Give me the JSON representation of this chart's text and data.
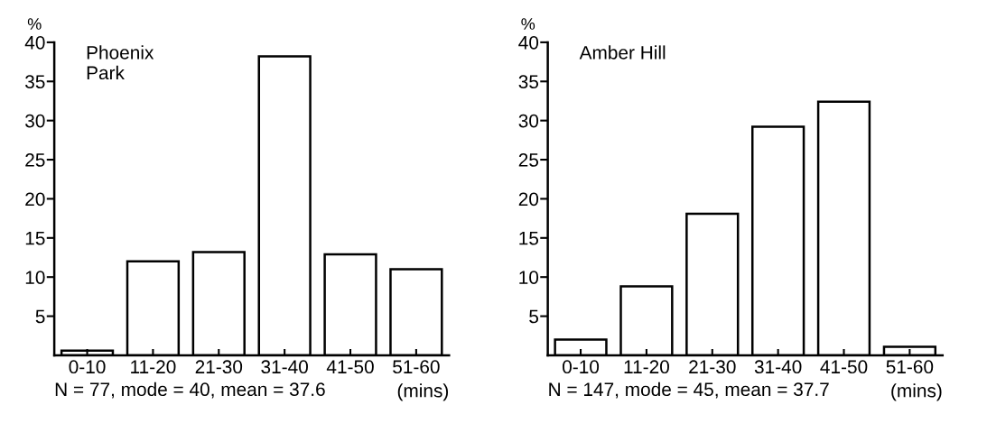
{
  "chart_data": [
    {
      "type": "bar",
      "title": "Phoenix\nPark",
      "ylabel": "%",
      "categories": [
        "0-10",
        "11-20",
        "21-30",
        "31-40",
        "41-50",
        "51-60"
      ],
      "values": [
        0.6,
        12.0,
        13.2,
        38.2,
        12.9,
        11.0
      ],
      "color": "#ffffff",
      "ylim": [
        0,
        40
      ],
      "yticks": [
        5,
        10,
        15,
        20,
        25,
        30,
        35,
        40
      ],
      "grid": false,
      "xlabel": "N = 77, mode = 40, mean = 37.6",
      "annotations": [
        "(mins)"
      ]
    },
    {
      "type": "bar",
      "title": "Amber Hill",
      "ylabel": "%",
      "categories": [
        "0-10",
        "11-20",
        "21-30",
        "31-40",
        "41-50",
        "51-60"
      ],
      "values": [
        2.0,
        8.8,
        18.1,
        29.2,
        32.4,
        1.1
      ],
      "color": "#ffffff",
      "ylim": [
        0,
        40
      ],
      "yticks": [
        5,
        10,
        15,
        20,
        25,
        30,
        35,
        40
      ],
      "grid": false,
      "xlabel": "N = 147, mode = 45, mean = 37.7",
      "annotations": [
        "(mins)"
      ]
    }
  ]
}
